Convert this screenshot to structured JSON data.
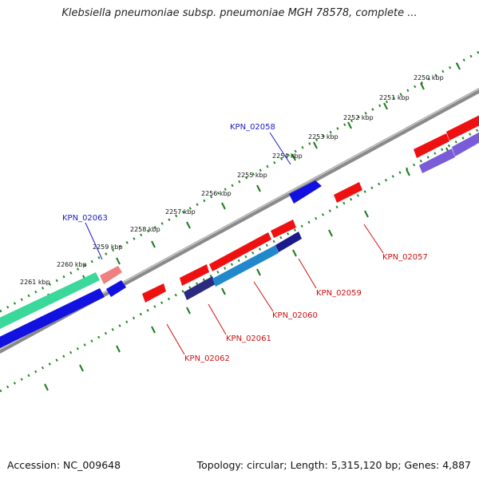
{
  "header": {
    "title": "Klebsiella pneumoniae subsp. pneumoniae MGH 78578, complete ..."
  },
  "footer": {
    "accession": "Accession: NC_009648",
    "topology": "Topology: circular; Length: 5,315,120 bp; Genes: 4,887"
  },
  "scale_labels": [
    "2250 kbp",
    "2251 kbp",
    "2252 kbp",
    "2253 kbp",
    "2254 kbp",
    "2255 kbp",
    "2256 kbp",
    "2257 kbp",
    "2258 kbp",
    "2259 kbp",
    "2260 kbp",
    "2261 kbp"
  ],
  "genes": [
    {
      "id": "KPN_02058",
      "strand": "forward"
    },
    {
      "id": "KPN_02063",
      "strand": "forward"
    },
    {
      "id": "KPN_02057",
      "strand": "reverse"
    },
    {
      "id": "KPN_02059",
      "strand": "reverse"
    },
    {
      "id": "KPN_02060",
      "strand": "reverse"
    },
    {
      "id": "KPN_02061",
      "strand": "reverse"
    },
    {
      "id": "KPN_02062",
      "strand": "reverse"
    }
  ],
  "colors": {
    "forward_gene": "#1010e0",
    "forward_label": "#1a1ac8",
    "reverse_gene": "#ee1111",
    "reverse_label": "#cc1111",
    "backbone": "#808080",
    "scale_ticks": "#228b22",
    "cds_band": "#3cd8a0",
    "mrna_band": "#7050d0"
  }
}
